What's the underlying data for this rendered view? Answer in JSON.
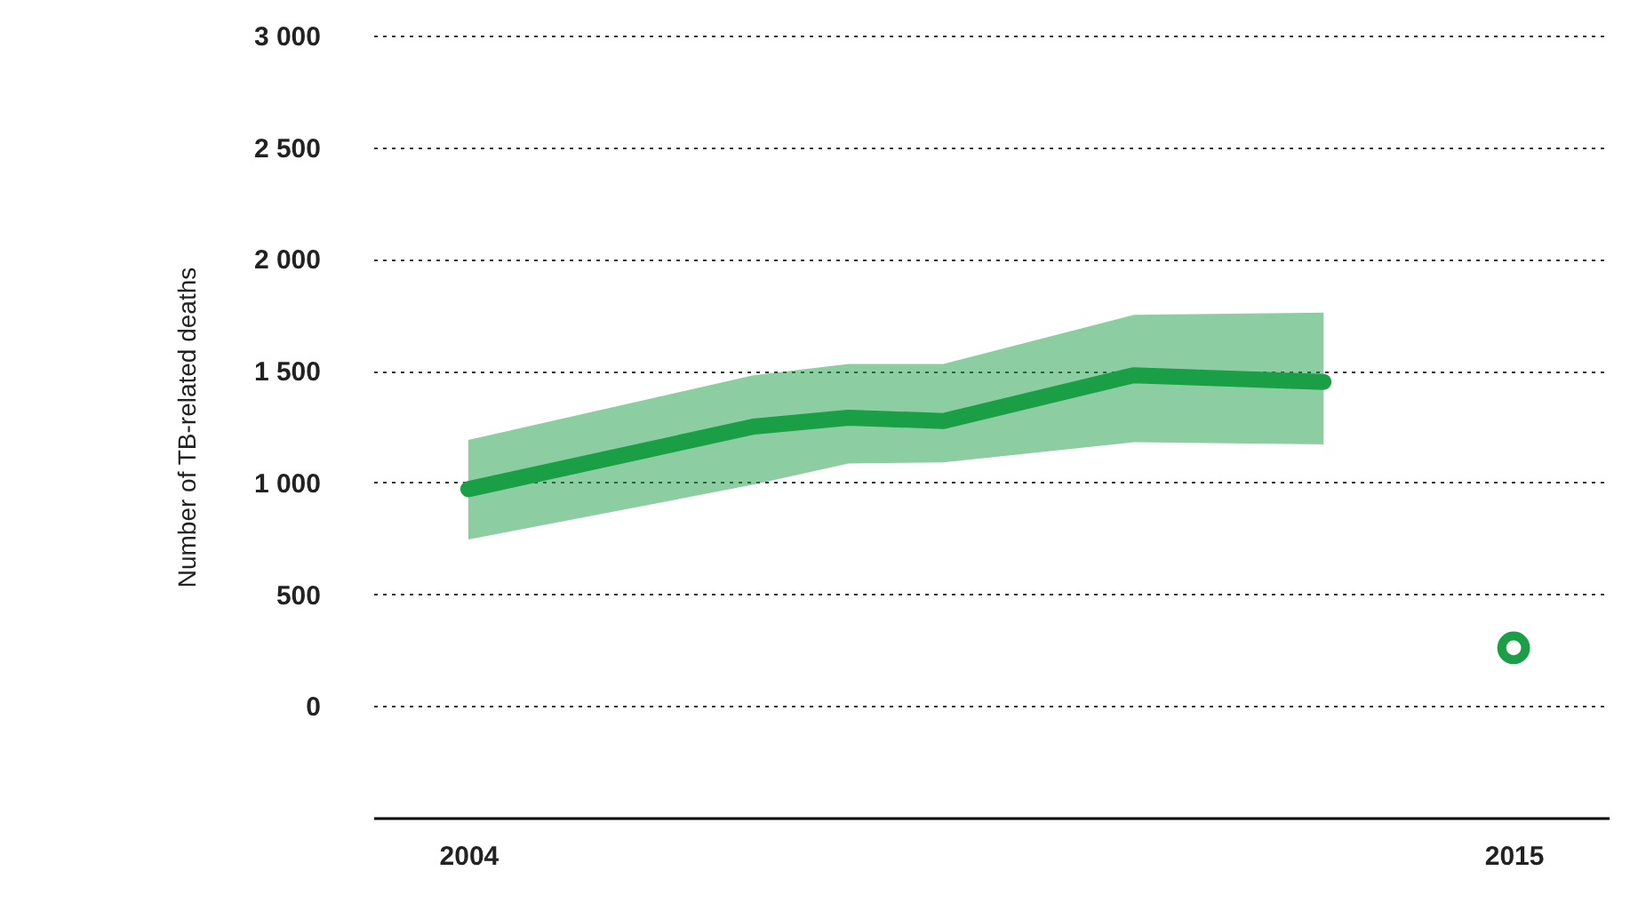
{
  "chart_data": {
    "type": "line",
    "ylabel": "Number of TB-related deaths",
    "xlim": [
      2003,
      2016
    ],
    "xticks": [
      2004,
      2015
    ],
    "ylim": [
      -500,
      3000
    ],
    "yticks": [
      0,
      500,
      1000,
      1500,
      2000,
      2500,
      3000
    ],
    "grid": "y",
    "line_style": "solid",
    "series": [
      {
        "color": "#1a9e46",
        "x": [
          2004,
          2007,
          2008,
          2009,
          2011,
          2013
        ],
        "values": [
          970,
          1250,
          1290,
          1275,
          1480,
          1450
        ],
        "lower": [
          745,
          990,
          1085,
          1090,
          1180,
          1170
        ],
        "upper": [
          1190,
          1480,
          1530,
          1530,
          1750,
          1760
        ]
      },
      {
        "type": "scatter",
        "color": "#1a9e46",
        "marker": "circle",
        "x": [
          2015
        ],
        "values": [
          260
        ]
      }
    ]
  }
}
